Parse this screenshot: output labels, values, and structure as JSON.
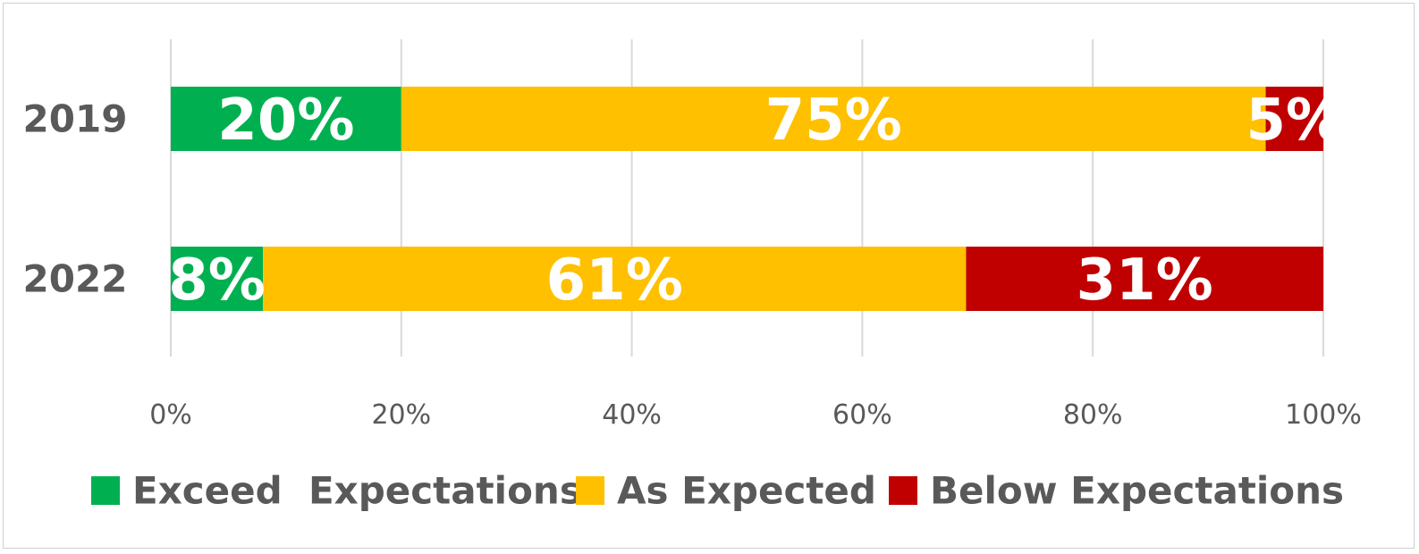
{
  "chart_data": {
    "type": "bar",
    "orientation": "horizontal",
    "stacked": true,
    "percent_stacked": true,
    "categories": [
      "2019",
      "2022"
    ],
    "series": [
      {
        "name": "Exceed  Expectations",
        "color": "#00b050",
        "values": [
          20,
          8
        ],
        "labels": [
          "20%",
          "8%"
        ]
      },
      {
        "name": "As Expected",
        "color": "#ffc000",
        "values": [
          75,
          61
        ],
        "labels": [
          "75%",
          "61%"
        ]
      },
      {
        "name": "Below Expectations",
        "color": "#c00000",
        "values": [
          5,
          31
        ],
        "labels": [
          "5%",
          "31%"
        ]
      }
    ],
    "xlim": [
      0,
      100
    ],
    "x_ticks": [
      0,
      20,
      40,
      60,
      80,
      100
    ],
    "x_tick_labels": [
      "0%",
      "20%",
      "40%",
      "60%",
      "80%",
      "100%"
    ],
    "grid": true,
    "legend_position": "bottom",
    "title": "",
    "xlabel": "",
    "ylabel": ""
  }
}
